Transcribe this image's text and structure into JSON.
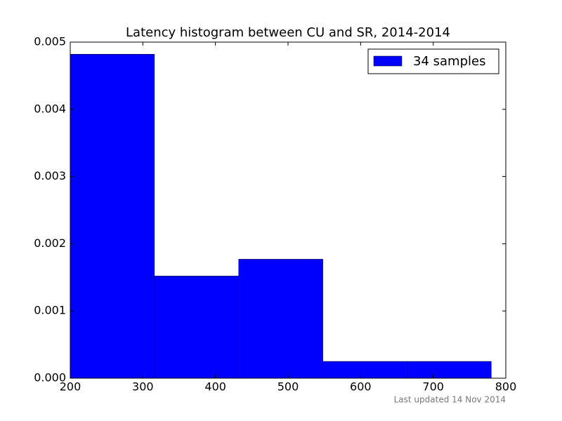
{
  "chart_data": {
    "type": "histogram",
    "title": "Latency histogram between CU and SR, 2014-2014",
    "bins": [
      200,
      316,
      432,
      548,
      664,
      780
    ],
    "series": [
      {
        "name": "34 samples",
        "color": "#0000ff",
        "values": [
          0.00482,
          0.00152,
          0.00177,
          0.00025,
          0.00025
        ]
      }
    ],
    "xlim": [
      200,
      800
    ],
    "xticks": [
      200,
      300,
      400,
      500,
      600,
      700,
      800
    ],
    "ylim": [
      0,
      0.005
    ],
    "yticks": [
      {
        "value": 0,
        "label": "0.000"
      },
      {
        "value": 0.001,
        "label": "0.001"
      },
      {
        "value": 0.002,
        "label": "0.002"
      },
      {
        "value": 0.003,
        "label": "0.003"
      },
      {
        "value": 0.004,
        "label": "0.004"
      },
      {
        "value": 0.005,
        "label": "0.005"
      }
    ],
    "legend": "upper right",
    "footnote": "Last updated 14 Nov 2014"
  }
}
